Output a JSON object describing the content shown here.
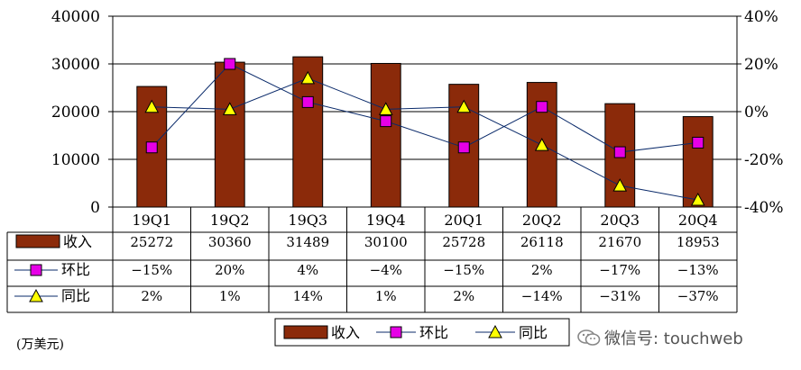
{
  "chart_data": {
    "type": "bar",
    "categories": [
      "19Q1",
      "19Q2",
      "19Q3",
      "19Q4",
      "20Q1",
      "20Q2",
      "20Q3",
      "20Q4"
    ],
    "series": [
      {
        "name": "收入",
        "kind": "bar",
        "axis": "left",
        "color": "#8B2A0A",
        "values": [
          25272,
          30360,
          31489,
          30100,
          25728,
          26118,
          21670,
          18953
        ],
        "labels": [
          "25272",
          "30360",
          "31489",
          "30100",
          "25728",
          "26118",
          "21670",
          "18953"
        ]
      },
      {
        "name": "环比",
        "kind": "line",
        "axis": "right",
        "color": "#E600E6",
        "marker": "square",
        "values": [
          -15,
          20,
          4,
          -4,
          -15,
          2,
          -17,
          -13
        ],
        "labels": [
          "-15%",
          "20%",
          "4%",
          "-4%",
          "-15%",
          "2%",
          "-17%",
          "-13%"
        ]
      },
      {
        "name": "同比",
        "kind": "line",
        "axis": "right",
        "color": "#FFFF00",
        "marker": "triangle",
        "values": [
          2,
          1,
          14,
          1,
          2,
          -14,
          -31,
          -37
        ],
        "labels": [
          "2%",
          "1%",
          "14%",
          "1%",
          "2%",
          "-14%",
          "-31%",
          "-37%"
        ]
      }
    ],
    "ylim": [
      0,
      40000
    ],
    "yticks": [
      "40000",
      "30000",
      "20000",
      "10000",
      "0"
    ],
    "y2lim": [
      -40,
      40
    ],
    "y2ticks": [
      "40%",
      "20%",
      "0%",
      "-20%",
      "-40%"
    ],
    "gridlines": true,
    "legend_placement": "bottom",
    "data_table": true
  },
  "unit_label": "(万美元)",
  "watermark": {
    "text": "微信号: touchweb",
    "icon": "wechat-icon"
  }
}
